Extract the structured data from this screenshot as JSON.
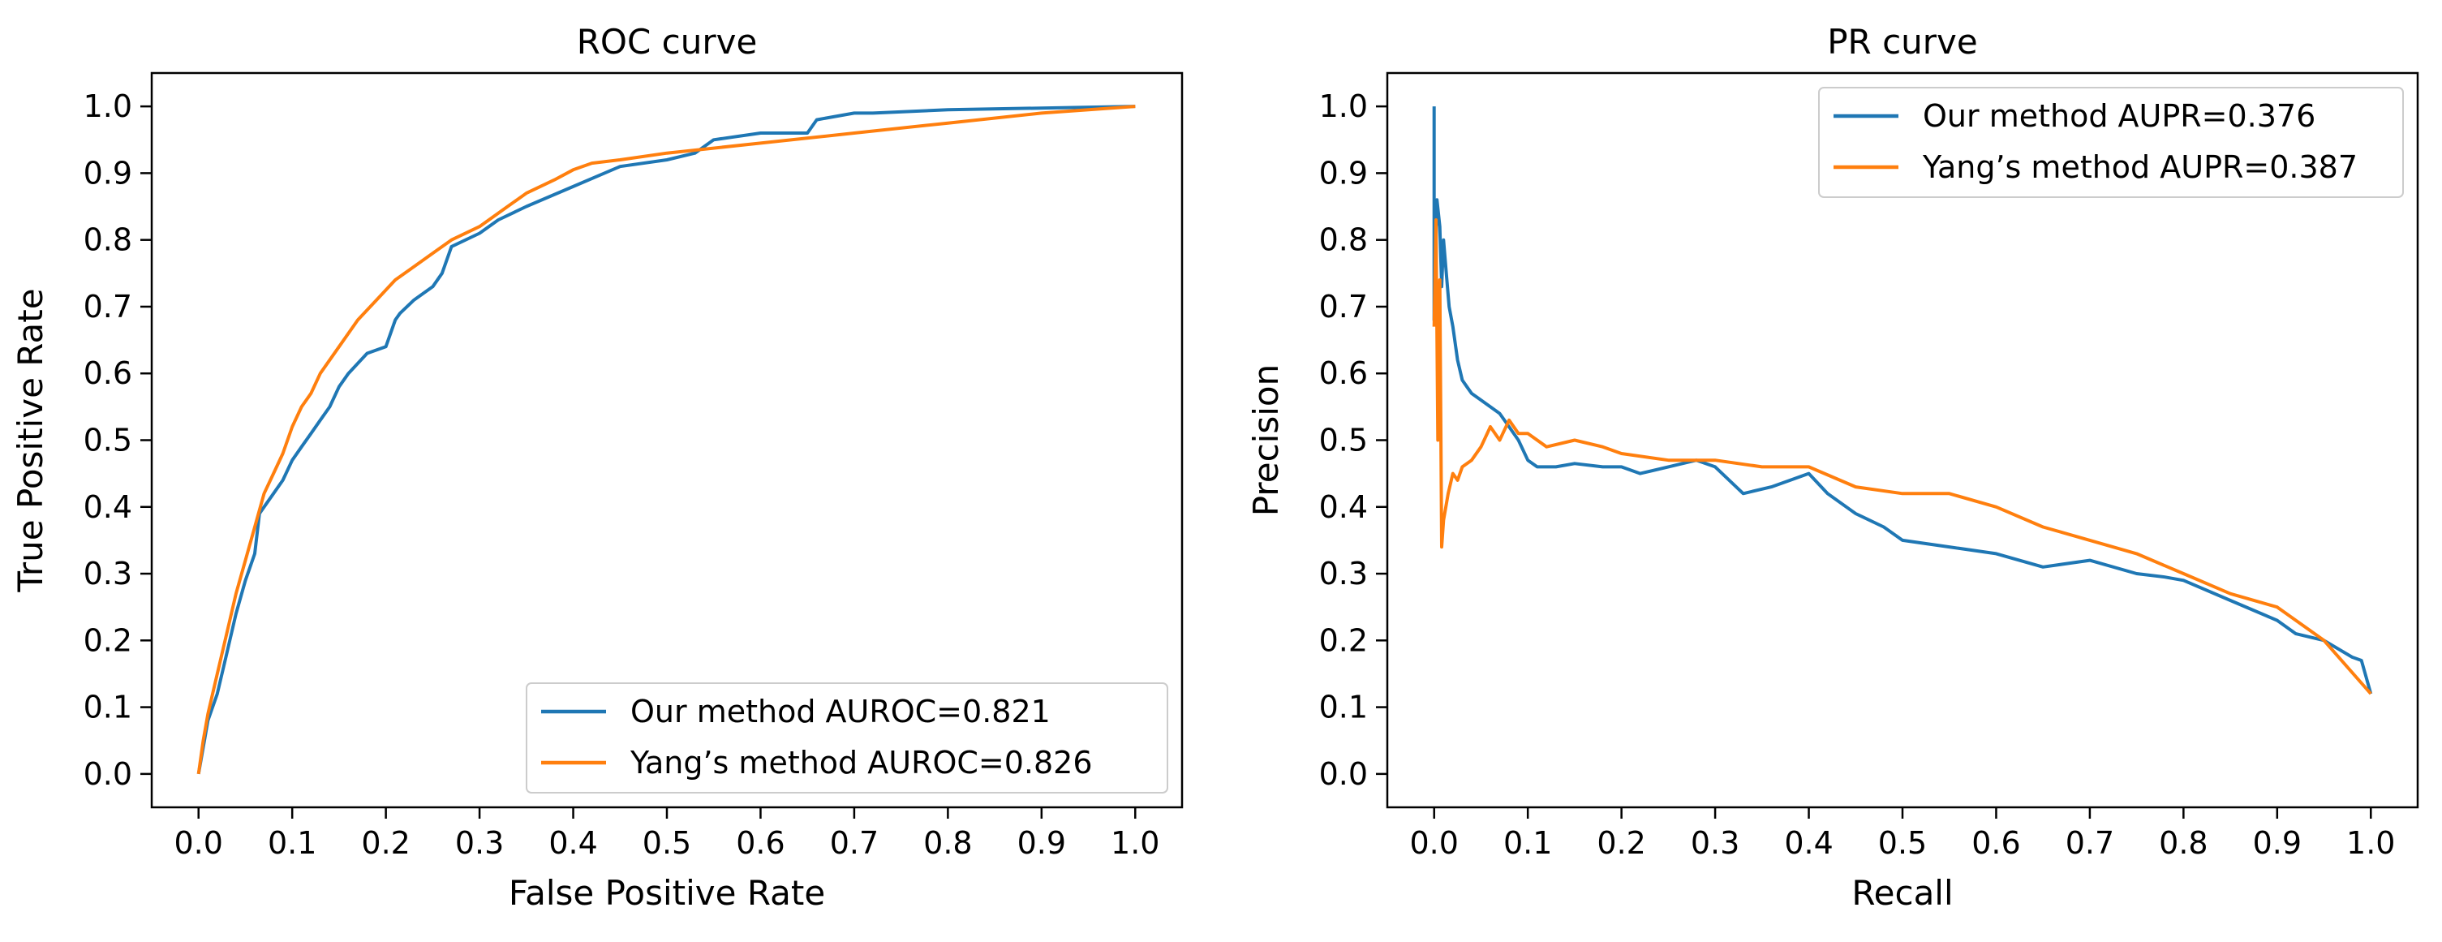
{
  "chart_data": [
    {
      "type": "line",
      "title": "ROC curve",
      "xlabel": "False Positive Rate",
      "ylabel": "True Positive Rate",
      "xlim": [
        -0.05,
        1.05
      ],
      "ylim": [
        -0.05,
        1.05
      ],
      "xticks": [
        "0.0",
        "0.1",
        "0.2",
        "0.3",
        "0.4",
        "0.5",
        "0.6",
        "0.7",
        "0.8",
        "0.9",
        "1.0"
      ],
      "yticks": [
        "0.0",
        "0.1",
        "0.2",
        "0.3",
        "0.4",
        "0.5",
        "0.6",
        "0.7",
        "0.8",
        "0.9",
        "1.0"
      ],
      "legend_position": "lower-right",
      "grid": false,
      "series": [
        {
          "name": "Our method AUROC=0.821",
          "color": "#1f77b4",
          "x": [
            0.0,
            0.005,
            0.01,
            0.02,
            0.03,
            0.04,
            0.05,
            0.06,
            0.065,
            0.07,
            0.08,
            0.09,
            0.1,
            0.11,
            0.12,
            0.13,
            0.14,
            0.15,
            0.16,
            0.18,
            0.2,
            0.21,
            0.215,
            0.23,
            0.25,
            0.26,
            0.27,
            0.3,
            0.32,
            0.35,
            0.4,
            0.45,
            0.5,
            0.53,
            0.55,
            0.6,
            0.65,
            0.66,
            0.7,
            0.72,
            0.8,
            1.0
          ],
          "y": [
            0.0,
            0.04,
            0.08,
            0.12,
            0.18,
            0.24,
            0.29,
            0.33,
            0.39,
            0.4,
            0.42,
            0.44,
            0.47,
            0.49,
            0.51,
            0.53,
            0.55,
            0.58,
            0.6,
            0.63,
            0.64,
            0.68,
            0.69,
            0.71,
            0.73,
            0.75,
            0.79,
            0.81,
            0.83,
            0.85,
            0.88,
            0.91,
            0.92,
            0.93,
            0.95,
            0.96,
            0.96,
            0.98,
            0.99,
            0.99,
            0.995,
            1.0
          ]
        },
        {
          "name": "Yang’s method AUROC=0.826",
          "color": "#ff7f0e",
          "x": [
            0.0,
            0.005,
            0.01,
            0.02,
            0.03,
            0.04,
            0.05,
            0.06,
            0.07,
            0.08,
            0.09,
            0.1,
            0.11,
            0.12,
            0.13,
            0.15,
            0.17,
            0.19,
            0.21,
            0.23,
            0.25,
            0.27,
            0.3,
            0.33,
            0.35,
            0.38,
            0.4,
            0.42,
            0.45,
            0.5,
            0.6,
            0.7,
            0.8,
            0.9,
            1.0
          ],
          "y": [
            0.0,
            0.05,
            0.09,
            0.15,
            0.21,
            0.27,
            0.32,
            0.37,
            0.42,
            0.45,
            0.48,
            0.52,
            0.55,
            0.57,
            0.6,
            0.64,
            0.68,
            0.71,
            0.74,
            0.76,
            0.78,
            0.8,
            0.82,
            0.85,
            0.87,
            0.89,
            0.905,
            0.915,
            0.92,
            0.93,
            0.945,
            0.96,
            0.975,
            0.99,
            1.0
          ]
        }
      ]
    },
    {
      "type": "line",
      "title": "PR curve",
      "xlabel": "Recall",
      "ylabel": "Precision",
      "xlim": [
        -0.05,
        1.05
      ],
      "ylim": [
        -0.05,
        1.05
      ],
      "xticks": [
        "0.0",
        "0.1",
        "0.2",
        "0.3",
        "0.4",
        "0.5",
        "0.6",
        "0.7",
        "0.8",
        "0.9",
        "1.0"
      ],
      "yticks": [
        "0.0",
        "0.1",
        "0.2",
        "0.3",
        "0.4",
        "0.5",
        "0.6",
        "0.7",
        "0.8",
        "0.9",
        "1.0"
      ],
      "legend_position": "upper-right",
      "grid": false,
      "series": [
        {
          "name": "Our method AUPR=0.376",
          "color": "#1f77b4",
          "x": [
            0.0,
            0.0,
            0.003,
            0.006,
            0.008,
            0.01,
            0.013,
            0.016,
            0.02,
            0.025,
            0.03,
            0.035,
            0.04,
            0.05,
            0.06,
            0.07,
            0.08,
            0.09,
            0.1,
            0.11,
            0.13,
            0.15,
            0.18,
            0.2,
            0.22,
            0.25,
            0.28,
            0.3,
            0.33,
            0.36,
            0.38,
            0.4,
            0.42,
            0.45,
            0.48,
            0.5,
            0.55,
            0.6,
            0.65,
            0.7,
            0.75,
            0.78,
            0.8,
            0.85,
            0.9,
            0.92,
            0.95,
            0.98,
            0.99,
            1.0
          ],
          "y": [
            1.0,
            0.68,
            0.86,
            0.82,
            0.73,
            0.8,
            0.75,
            0.7,
            0.67,
            0.62,
            0.59,
            0.58,
            0.57,
            0.56,
            0.55,
            0.54,
            0.52,
            0.5,
            0.47,
            0.46,
            0.46,
            0.465,
            0.46,
            0.46,
            0.45,
            0.46,
            0.47,
            0.46,
            0.42,
            0.43,
            0.44,
            0.45,
            0.42,
            0.39,
            0.37,
            0.35,
            0.34,
            0.33,
            0.31,
            0.32,
            0.3,
            0.295,
            0.29,
            0.26,
            0.23,
            0.21,
            0.2,
            0.175,
            0.17,
            0.12
          ]
        },
        {
          "name": "Yang’s method AUPR=0.387",
          "color": "#ff7f0e",
          "x": [
            0.0,
            0.002,
            0.004,
            0.006,
            0.008,
            0.01,
            0.015,
            0.02,
            0.025,
            0.03,
            0.04,
            0.05,
            0.06,
            0.07,
            0.08,
            0.09,
            0.1,
            0.12,
            0.15,
            0.18,
            0.2,
            0.25,
            0.3,
            0.35,
            0.4,
            0.45,
            0.5,
            0.55,
            0.6,
            0.65,
            0.7,
            0.75,
            0.8,
            0.85,
            0.9,
            0.95,
            1.0
          ],
          "y": [
            0.67,
            0.83,
            0.5,
            0.74,
            0.34,
            0.38,
            0.42,
            0.45,
            0.44,
            0.46,
            0.47,
            0.49,
            0.52,
            0.5,
            0.53,
            0.51,
            0.51,
            0.49,
            0.5,
            0.49,
            0.48,
            0.47,
            0.47,
            0.46,
            0.46,
            0.43,
            0.42,
            0.42,
            0.4,
            0.37,
            0.35,
            0.33,
            0.3,
            0.27,
            0.25,
            0.2,
            0.12
          ]
        }
      ]
    }
  ]
}
